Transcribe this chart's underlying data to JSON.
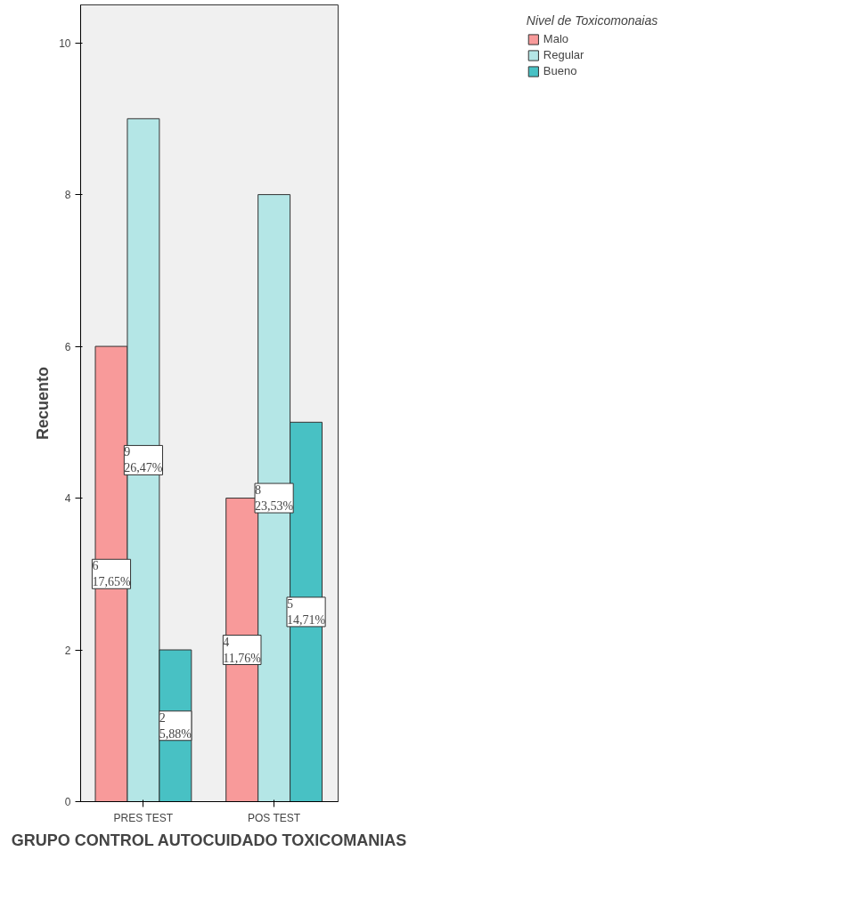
{
  "chart_data": {
    "type": "bar",
    "xlabel": "GRUPO CONTROL AUTOCUIDADO TOXICOMANIAS",
    "ylabel": "Recuento",
    "legend_title": "Nivel de Toxicomonaias",
    "categories": [
      "PRES TEST",
      "POS TEST"
    ],
    "series": [
      {
        "name": "Malo",
        "color": "#f89a9a",
        "values": [
          6,
          4
        ],
        "value_labels": [
          "6\n17,65%",
          "4\n11,76%"
        ]
      },
      {
        "name": "Regular",
        "color": "#b4e6e6",
        "values": [
          9,
          8
        ],
        "value_labels": [
          "9\n26,47%",
          "8\n23,53%"
        ]
      },
      {
        "name": "Bueno",
        "color": "#48c1c4",
        "values": [
          2,
          5
        ],
        "value_labels": [
          "2\n5,88%",
          "5\n14,71%"
        ]
      }
    ],
    "ylim": [
      0,
      10.5
    ],
    "yticks": [
      0,
      2,
      4,
      6,
      8,
      10
    ],
    "grid": false,
    "legend": "top right"
  }
}
